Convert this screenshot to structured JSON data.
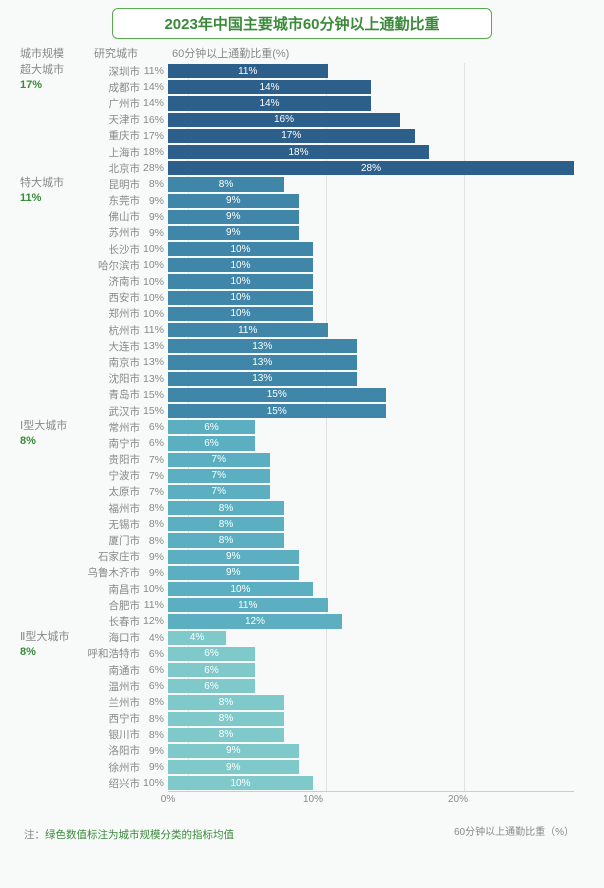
{
  "title": "2023年中国主要城市60分钟以上通勤比重",
  "headers": {
    "scale": "城市规模",
    "city": "研究城市",
    "metric": "60分钟以上通勤比重(%)"
  },
  "xaxis": {
    "label": "60分钟以上通勤比重（%）",
    "min": 0,
    "max": 28,
    "ticks": [
      0,
      10,
      20
    ],
    "tick_labels": [
      "0%",
      "10%",
      "20%"
    ]
  },
  "footnote_key": "注：",
  "footnote_val": "绿色数值标注为城市规模分类的指标均值",
  "groups": [
    {
      "name": "超大城市",
      "avg": "17%",
      "color": "#2d5f8b",
      "rows": [
        {
          "city": "深圳市",
          "value": 11
        },
        {
          "city": "成都市",
          "value": 14
        },
        {
          "city": "广州市",
          "value": 14
        },
        {
          "city": "天津市",
          "value": 16
        },
        {
          "city": "重庆市",
          "value": 17
        },
        {
          "city": "上海市",
          "value": 18
        },
        {
          "city": "北京市",
          "value": 28
        }
      ]
    },
    {
      "name": "特大城市",
      "avg": "11%",
      "color": "#3f86a8",
      "rows": [
        {
          "city": "昆明市",
          "value": 8
        },
        {
          "city": "东莞市",
          "value": 9
        },
        {
          "city": "佛山市",
          "value": 9
        },
        {
          "city": "苏州市",
          "value": 9
        },
        {
          "city": "长沙市",
          "value": 10
        },
        {
          "city": "哈尔滨市",
          "value": 10
        },
        {
          "city": "济南市",
          "value": 10
        },
        {
          "city": "西安市",
          "value": 10
        },
        {
          "city": "郑州市",
          "value": 10
        },
        {
          "city": "杭州市",
          "value": 11
        },
        {
          "city": "大连市",
          "value": 13
        },
        {
          "city": "南京市",
          "value": 13
        },
        {
          "city": "沈阳市",
          "value": 13
        },
        {
          "city": "青岛市",
          "value": 15
        },
        {
          "city": "武汉市",
          "value": 15
        }
      ]
    },
    {
      "name": "Ⅰ型大城市",
      "avg": "8%",
      "color": "#5bafc0",
      "rows": [
        {
          "city": "常州市",
          "value": 6
        },
        {
          "city": "南宁市",
          "value": 6
        },
        {
          "city": "贵阳市",
          "value": 7
        },
        {
          "city": "宁波市",
          "value": 7
        },
        {
          "city": "太原市",
          "value": 7
        },
        {
          "city": "福州市",
          "value": 8
        },
        {
          "city": "无锡市",
          "value": 8
        },
        {
          "city": "厦门市",
          "value": 8
        },
        {
          "city": "石家庄市",
          "value": 9
        },
        {
          "city": "乌鲁木齐市",
          "value": 9
        },
        {
          "city": "南昌市",
          "value": 10
        },
        {
          "city": "合肥市",
          "value": 11
        },
        {
          "city": "长春市",
          "value": 12
        }
      ]
    },
    {
      "name": "Ⅱ型大城市",
      "avg": "8%",
      "color": "#7fc9cb",
      "rows": [
        {
          "city": "海口市",
          "value": 4
        },
        {
          "city": "呼和浩特市",
          "value": 6
        },
        {
          "city": "南通市",
          "value": 6
        },
        {
          "city": "温州市",
          "value": 6
        },
        {
          "city": "兰州市",
          "value": 8
        },
        {
          "city": "西宁市",
          "value": 8
        },
        {
          "city": "银川市",
          "value": 8
        },
        {
          "city": "洛阳市",
          "value": 9
        },
        {
          "city": "徐州市",
          "value": 9
        },
        {
          "city": "绍兴市",
          "value": 10
        }
      ]
    }
  ]
}
